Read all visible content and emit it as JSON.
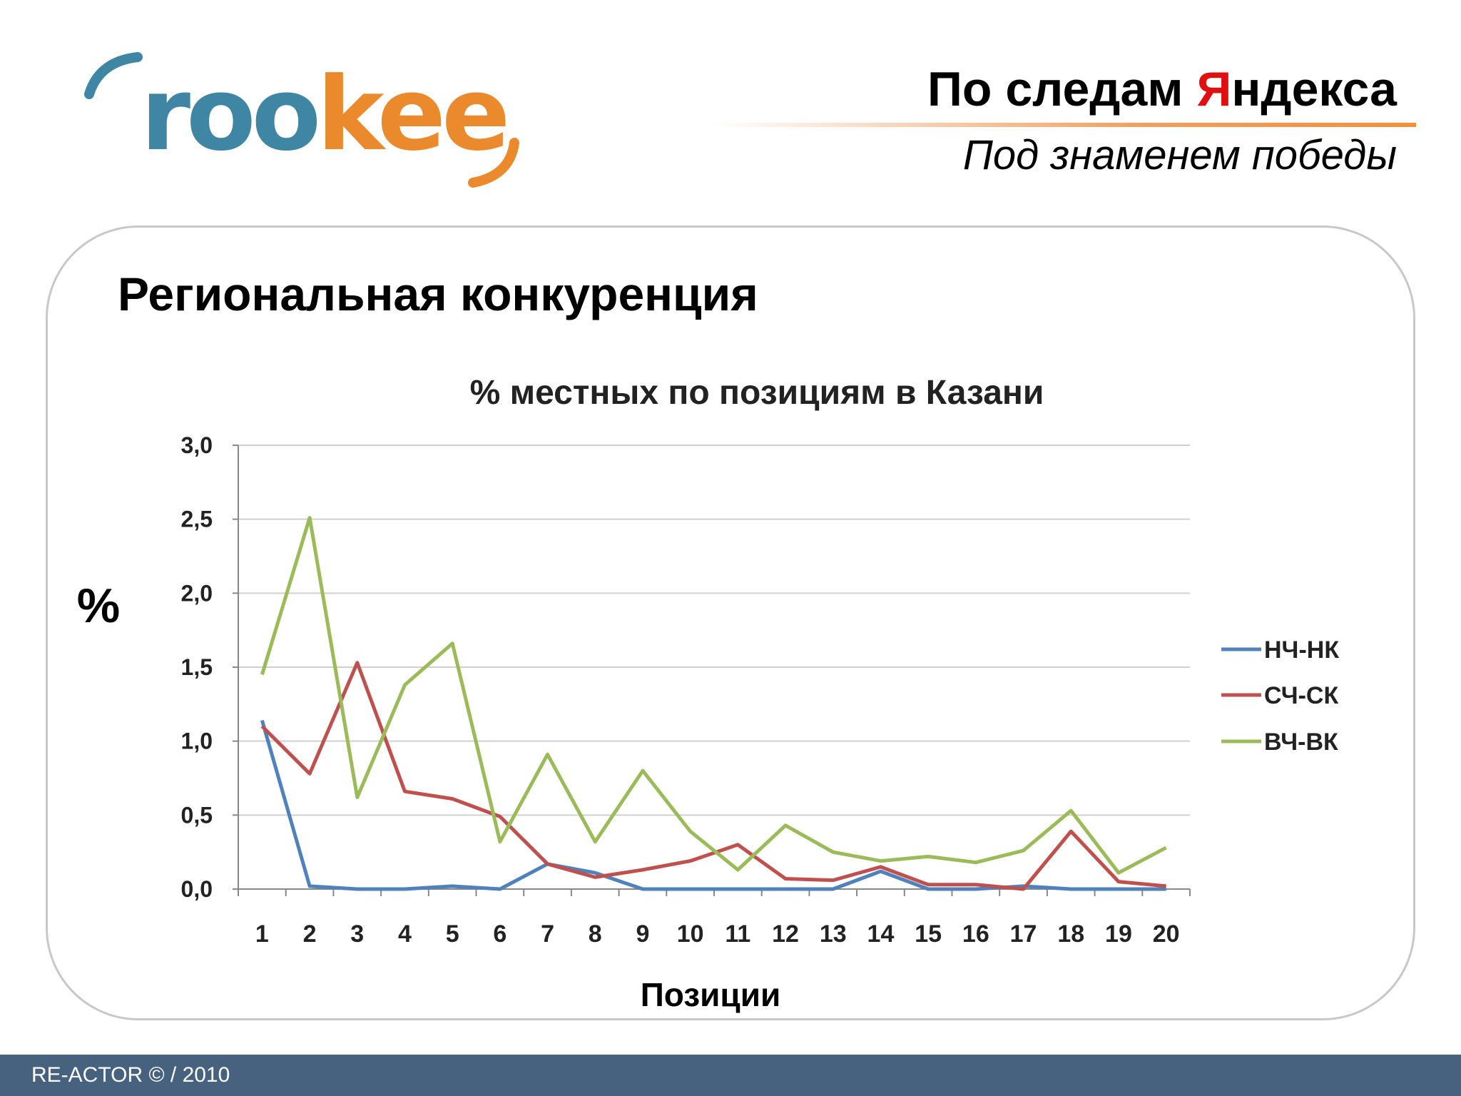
{
  "header": {
    "title_prefix": "По следам ",
    "title_accent": "Я",
    "title_suffix": "ндекса",
    "subtitle": "Под знаменем победы"
  },
  "logo": {
    "part1": "roo",
    "part2": "kee"
  },
  "slide": {
    "title": "Региональная конкуренция"
  },
  "chart_data": {
    "type": "line",
    "title": "% местных по позициям в Казани",
    "xlabel": "Позиции",
    "ylabel": "%",
    "ylim": [
      0,
      3
    ],
    "yticks": [
      "0,0",
      "0,5",
      "1,0",
      "1,5",
      "2,0",
      "2,5",
      "3,0"
    ],
    "categories": [
      "1",
      "2",
      "3",
      "4",
      "5",
      "6",
      "7",
      "8",
      "9",
      "10",
      "11",
      "12",
      "13",
      "14",
      "15",
      "16",
      "17",
      "18",
      "19",
      "20"
    ],
    "grid": true,
    "legend": "right",
    "series": [
      {
        "name": "НЧ-НК",
        "color": "#4f81bd",
        "values": [
          1.14,
          0.02,
          0.0,
          0.0,
          0.02,
          0.0,
          0.17,
          0.11,
          0.0,
          0.0,
          0.0,
          0.0,
          0.0,
          0.12,
          0.0,
          0.0,
          0.02,
          0.0,
          0.0,
          0.0
        ]
      },
      {
        "name": "СЧ-СК",
        "color": "#c0504d",
        "values": [
          1.1,
          0.78,
          1.53,
          0.66,
          0.61,
          0.49,
          0.17,
          0.08,
          0.13,
          0.19,
          0.3,
          0.07,
          0.06,
          0.15,
          0.03,
          0.03,
          0.0,
          0.39,
          0.05,
          0.02
        ]
      },
      {
        "name": "ВЧ-ВК",
        "color": "#9bbb59",
        "values": [
          1.45,
          2.51,
          0.62,
          1.38,
          1.66,
          0.32,
          0.91,
          0.32,
          0.8,
          0.39,
          0.13,
          0.43,
          0.25,
          0.19,
          0.22,
          0.18,
          0.26,
          0.53,
          0.11,
          0.28
        ]
      }
    ]
  },
  "footer": {
    "text": "RE-ACTOR © / 2010"
  }
}
